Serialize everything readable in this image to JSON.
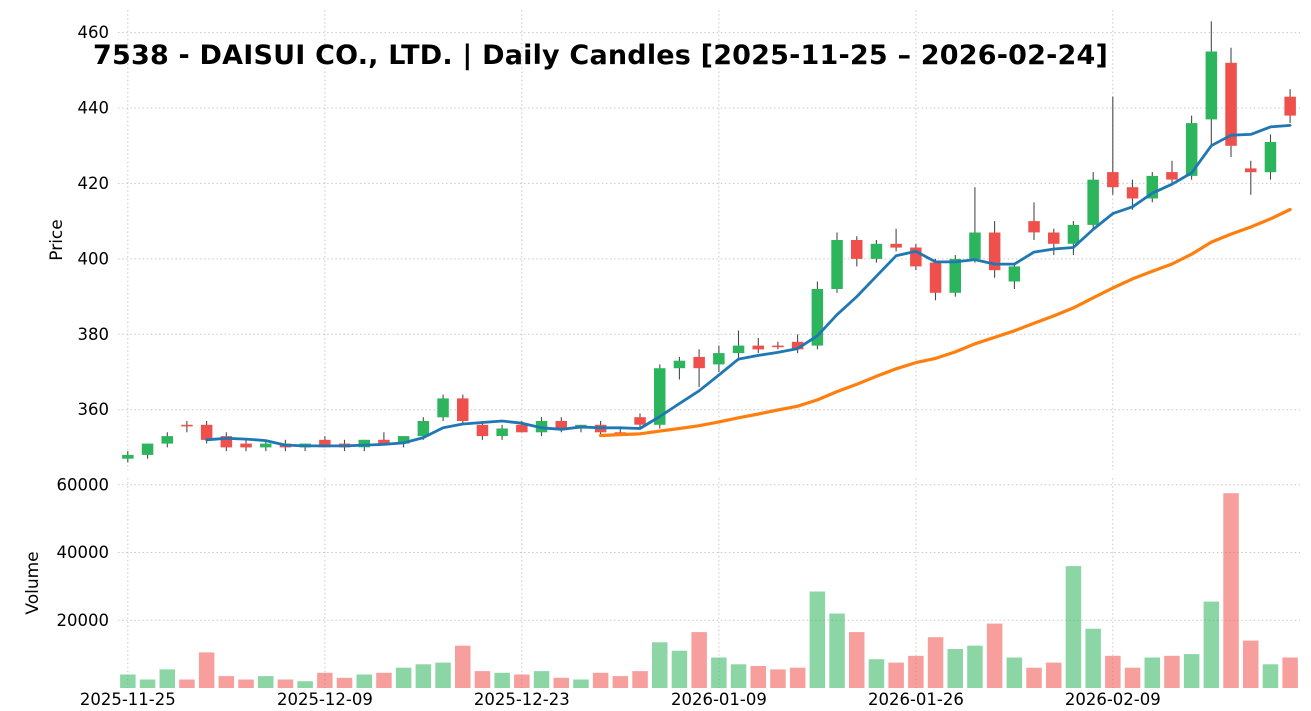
{
  "title": "7538 - DAISUI CO., LTD. | Daily Candles [2025-11-25 – 2026-02-24]",
  "chart_data": {
    "type": "candlestick",
    "title": "7538 - DAISUI CO., LTD. | Daily Candles [2025-11-25 – 2026-02-24]",
    "panels": [
      {
        "name": "price",
        "ylabel": "Price",
        "yticks": [
          360,
          380,
          400,
          420,
          440,
          460
        ],
        "ylim": [
          344,
          466
        ],
        "grid": true
      },
      {
        "name": "volume",
        "ylabel": "Volume",
        "yticks": [
          20000,
          40000,
          60000
        ],
        "ytick_labels": [
          "20000",
          "40000",
          "60000"
        ],
        "ylim": [
          0,
          62000
        ],
        "grid": true
      }
    ],
    "x_ticks": {
      "indices": [
        0,
        10,
        20,
        30,
        40,
        50
      ],
      "labels": [
        "2025-11-25",
        "2025-12-09",
        "2025-12-23",
        "2026-01-09",
        "2026-01-26",
        "2026-02-09"
      ]
    },
    "dates": [
      "2025-11-25",
      "2025-11-26",
      "2025-11-27",
      "2025-11-28",
      "2025-12-01",
      "2025-12-02",
      "2025-12-03",
      "2025-12-04",
      "2025-12-05",
      "2025-12-08",
      "2025-12-09",
      "2025-12-10",
      "2025-12-11",
      "2025-12-12",
      "2025-12-15",
      "2025-12-16",
      "2025-12-17",
      "2025-12-18",
      "2025-12-19",
      "2025-12-22",
      "2025-12-23",
      "2025-12-24",
      "2025-12-25",
      "2025-12-26",
      "2025-12-29",
      "2025-12-30",
      "2026-01-05",
      "2026-01-06",
      "2026-01-07",
      "2026-01-08",
      "2026-01-09",
      "2026-01-13",
      "2026-01-14",
      "2026-01-15",
      "2026-01-16",
      "2026-01-19",
      "2026-01-20",
      "2026-01-21",
      "2026-01-22",
      "2026-01-23",
      "2026-01-26",
      "2026-01-27",
      "2026-01-28",
      "2026-01-29",
      "2026-01-30",
      "2026-02-02",
      "2026-02-03",
      "2026-02-04",
      "2026-02-05",
      "2026-02-06",
      "2026-02-09",
      "2026-02-10",
      "2026-02-12",
      "2026-02-13",
      "2026-02-16",
      "2026-02-17",
      "2026-02-18",
      "2026-02-19",
      "2026-02-20",
      "2026-02-24"
    ],
    "ohlc": [
      [
        347,
        349,
        346,
        348
      ],
      [
        348,
        351,
        347,
        351
      ],
      [
        351,
        354,
        350,
        353
      ],
      [
        356,
        357,
        354,
        356
      ],
      [
        356,
        357,
        351,
        352
      ],
      [
        353,
        354,
        349,
        350
      ],
      [
        351,
        352,
        349,
        350
      ],
      [
        350,
        352,
        349,
        351
      ],
      [
        351,
        352,
        349,
        350
      ],
      [
        350,
        351,
        349,
        351
      ],
      [
        352,
        353,
        350,
        350
      ],
      [
        351,
        352,
        349,
        350
      ],
      [
        350,
        352,
        349,
        352
      ],
      [
        352,
        354,
        351,
        351
      ],
      [
        351,
        353,
        350,
        353
      ],
      [
        353,
        358,
        352,
        357
      ],
      [
        358,
        364,
        357,
        363
      ],
      [
        363,
        364,
        356,
        357
      ],
      [
        356,
        357,
        352,
        353
      ],
      [
        353,
        356,
        352,
        355
      ],
      [
        356,
        357,
        354,
        354
      ],
      [
        354,
        358,
        353,
        357
      ],
      [
        357,
        358,
        354,
        355
      ],
      [
        355,
        356,
        354,
        356
      ],
      [
        356,
        357,
        353,
        354
      ],
      [
        354,
        355,
        353,
        354
      ],
      [
        358,
        359,
        355,
        356
      ],
      [
        356,
        372,
        355,
        371
      ],
      [
        371,
        374,
        368,
        373
      ],
      [
        374,
        376,
        366,
        371
      ],
      [
        372,
        377,
        370,
        375
      ],
      [
        375,
        381,
        373,
        377
      ],
      [
        377,
        379,
        375,
        376
      ],
      [
        377,
        378,
        376,
        377
      ],
      [
        378,
        380,
        375,
        376
      ],
      [
        377,
        394,
        376,
        392
      ],
      [
        392,
        407,
        391,
        405
      ],
      [
        405,
        406,
        398,
        400
      ],
      [
        400,
        405,
        399,
        404
      ],
      [
        404,
        408,
        402,
        403
      ],
      [
        403,
        404,
        397,
        398
      ],
      [
        399,
        400,
        389,
        391
      ],
      [
        391,
        401,
        390,
        400
      ],
      [
        400,
        419,
        399,
        407
      ],
      [
        407,
        410,
        395,
        397
      ],
      [
        394,
        399,
        392,
        398
      ],
      [
        410,
        415,
        405,
        407
      ],
      [
        407,
        408,
        401,
        404
      ],
      [
        404,
        410,
        401,
        409
      ],
      [
        409,
        423,
        408,
        421
      ],
      [
        423,
        443,
        417,
        419
      ],
      [
        419,
        421,
        413,
        416
      ],
      [
        416,
        423,
        415,
        422
      ],
      [
        423,
        426,
        420,
        421
      ],
      [
        422,
        438,
        421,
        436
      ],
      [
        437,
        463,
        430,
        455
      ],
      [
        452,
        456,
        427,
        430
      ],
      [
        424,
        426,
        417,
        423
      ],
      [
        423,
        433,
        421,
        431
      ],
      [
        443,
        445,
        436,
        438
      ]
    ],
    "volume": [
      4000,
      2500,
      5500,
      2500,
      10500,
      3500,
      2500,
      3500,
      2500,
      2000,
      4500,
      3000,
      4000,
      4500,
      6000,
      7000,
      7500,
      12500,
      5000,
      4500,
      4000,
      5000,
      3000,
      2500,
      4500,
      3500,
      5000,
      13500,
      11000,
      16500,
      9000,
      7000,
      6500,
      5500,
      6000,
      28500,
      22000,
      16500,
      8500,
      7500,
      9500,
      15000,
      11500,
      12500,
      19000,
      9000,
      6000,
      7500,
      36000,
      17500,
      9500,
      6000,
      9000,
      9500,
      10000,
      25500,
      57500,
      14000,
      7000,
      9000
    ],
    "overlays": [
      {
        "name": "SMA5",
        "period": 5,
        "color": "#1f77b4",
        "width": 2.8
      },
      {
        "name": "SMA25",
        "period": 25,
        "color": "#ff7f0e",
        "width": 3.2
      }
    ],
    "colors": {
      "up": "#2db55d",
      "down": "#f0504b",
      "wick": "#4a4a4a",
      "grid": "#c9c9c9",
      "text": "#000000",
      "background": "#ffffff",
      "volume_opacity": 0.55
    },
    "legend": "off"
  }
}
